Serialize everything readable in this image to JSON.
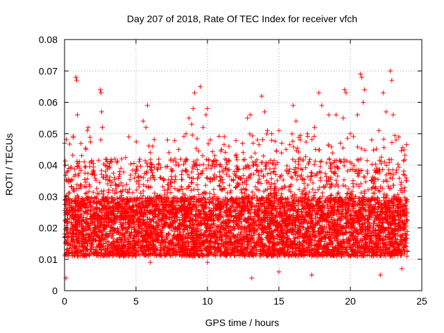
{
  "chart_data": {
    "type": "scatter",
    "title": "Day 207 of 2018, Rate Of TEC Index for receiver vfch",
    "xlabel": "GPS time / hours",
    "ylabel": "ROTI / TECUs",
    "xlim": [
      0,
      25
    ],
    "ylim": [
      0,
      0.08
    ],
    "xticks": [
      0,
      5,
      10,
      15,
      20,
      25
    ],
    "yticks": [
      0,
      0.01,
      0.02,
      0.03,
      0.04,
      0.05,
      0.06,
      0.07,
      0.08
    ],
    "xtick_labels": [
      "0",
      "5",
      "10",
      "15",
      "20",
      "25"
    ],
    "ytick_labels": [
      "0",
      "0.01",
      "0.02",
      "0.03",
      "0.04",
      "0.05",
      "0.06",
      "0.07",
      "0.08"
    ],
    "grid": true,
    "marker": "+",
    "color": "#ff0000",
    "series": [
      {
        "name": "ROTI",
        "x_range": [
          0,
          24
        ],
        "typical_range": [
          0.008,
          0.03
        ],
        "points": [
          [
            0.0,
            0.047
          ],
          [
            0.05,
            0.04
          ],
          [
            0.1,
            0.03
          ],
          [
            0.15,
            0.035
          ],
          [
            0.2,
            0.025
          ],
          [
            0.3,
            0.039
          ],
          [
            0.5,
            0.033
          ],
          [
            0.8,
            0.068
          ],
          [
            0.85,
            0.067
          ],
          [
            0.9,
            0.056
          ],
          [
            1.2,
            0.043
          ],
          [
            1.5,
            0.045
          ],
          [
            1.6,
            0.051
          ],
          [
            1.65,
            0.052
          ],
          [
            2.0,
            0.038
          ],
          [
            2.5,
            0.064
          ],
          [
            2.55,
            0.063
          ],
          [
            2.6,
            0.057
          ],
          [
            2.65,
            0.052
          ],
          [
            3.0,
            0.041
          ],
          [
            3.5,
            0.036
          ],
          [
            4.0,
            0.042
          ],
          [
            4.5,
            0.049
          ],
          [
            5.0,
            0.038
          ],
          [
            5.5,
            0.054
          ],
          [
            5.7,
            0.052
          ],
          [
            5.8,
            0.059
          ],
          [
            6.0,
            0.044
          ],
          [
            6.5,
            0.03
          ],
          [
            7.0,
            0.032
          ],
          [
            7.2,
            0.048
          ],
          [
            7.3,
            0.044
          ],
          [
            7.5,
            0.038
          ],
          [
            8.0,
            0.04
          ],
          [
            8.5,
            0.05
          ],
          [
            8.7,
            0.055
          ],
          [
            8.9,
            0.053
          ],
          [
            9.0,
            0.058
          ],
          [
            9.1,
            0.063
          ],
          [
            9.5,
            0.065
          ],
          [
            9.7,
            0.052
          ],
          [
            9.9,
            0.056
          ],
          [
            10.0,
            0.058
          ],
          [
            10.2,
            0.048
          ],
          [
            10.5,
            0.043
          ],
          [
            11.0,
            0.045
          ],
          [
            11.5,
            0.046
          ],
          [
            12.0,
            0.043
          ],
          [
            12.5,
            0.044
          ],
          [
            12.8,
            0.055
          ],
          [
            13.0,
            0.056
          ],
          [
            13.2,
            0.047
          ],
          [
            13.5,
            0.048
          ],
          [
            13.8,
            0.062
          ],
          [
            14.0,
            0.057
          ],
          [
            14.2,
            0.051
          ],
          [
            14.5,
            0.05
          ],
          [
            15.0,
            0.051
          ],
          [
            15.2,
            0.047
          ],
          [
            15.5,
            0.045
          ],
          [
            16.0,
            0.059
          ],
          [
            16.2,
            0.054
          ],
          [
            16.5,
            0.048
          ],
          [
            17.0,
            0.05
          ],
          [
            17.5,
            0.052
          ],
          [
            17.8,
            0.063
          ],
          [
            18.0,
            0.059
          ],
          [
            18.5,
            0.056
          ],
          [
            19.0,
            0.056
          ],
          [
            19.3,
            0.047
          ],
          [
            19.5,
            0.055
          ],
          [
            19.6,
            0.064
          ],
          [
            19.7,
            0.063
          ],
          [
            20.0,
            0.05
          ],
          [
            20.5,
            0.056
          ],
          [
            20.7,
            0.069
          ],
          [
            20.8,
            0.068
          ],
          [
            20.9,
            0.06
          ],
          [
            21.0,
            0.064
          ],
          [
            21.5,
            0.048
          ],
          [
            22.0,
            0.051
          ],
          [
            22.3,
            0.063
          ],
          [
            22.5,
            0.057
          ],
          [
            22.8,
            0.07
          ],
          [
            22.9,
            0.067
          ],
          [
            23.0,
            0.056
          ],
          [
            23.2,
            0.048
          ],
          [
            23.5,
            0.032
          ],
          [
            23.7,
            0.037
          ],
          [
            23.9,
            0.035
          ],
          [
            0.1,
            0.004
          ],
          [
            6.0,
            0.009
          ],
          [
            10.0,
            0.009
          ],
          [
            13.1,
            0.004
          ],
          [
            15.0,
            0.006
          ],
          [
            17.3,
            0.005
          ],
          [
            22.1,
            0.005
          ],
          [
            23.6,
            0.007
          ]
        ]
      }
    ]
  }
}
